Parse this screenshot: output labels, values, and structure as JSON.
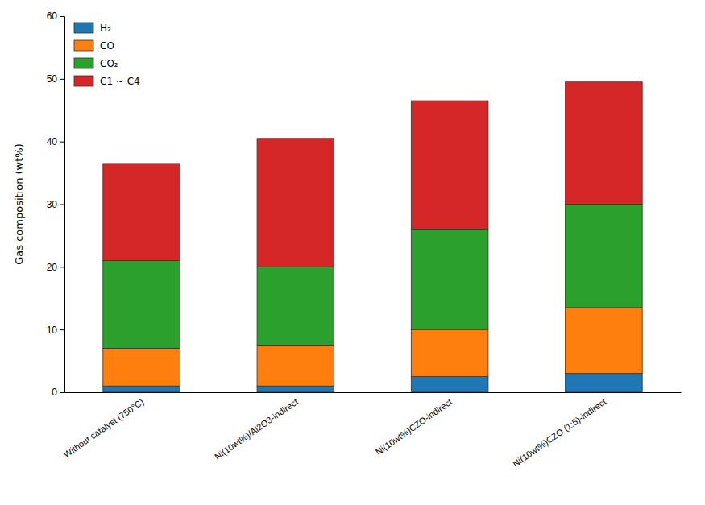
{
  "chart_data": {
    "type": "bar",
    "stacked": true,
    "categories": [
      "Without catalyst (750°C)",
      "Ni(10wt%)/Al2O3-indirect",
      "Ni(10wt%)CZO-indirect",
      "Ni(10wt%)CZO (1:5)-indirect"
    ],
    "series": [
      {
        "name": "H₂",
        "values": [
          1.0,
          1.0,
          2.5,
          3.0
        ]
      },
      {
        "name": "CO",
        "values": [
          6.0,
          6.5,
          7.5,
          10.5
        ]
      },
      {
        "name": "CO₂",
        "values": [
          14.0,
          12.5,
          16.0,
          16.5
        ]
      },
      {
        "name": "C1 ~ C4",
        "values": [
          15.5,
          20.5,
          20.5,
          19.5
        ]
      }
    ],
    "ylabel": "Gas composition (wt%)",
    "ylim": [
      0,
      60
    ],
    "yticks": [
      0,
      10,
      20,
      30,
      40,
      50,
      60
    ],
    "grid": false,
    "legend": "upper left"
  }
}
